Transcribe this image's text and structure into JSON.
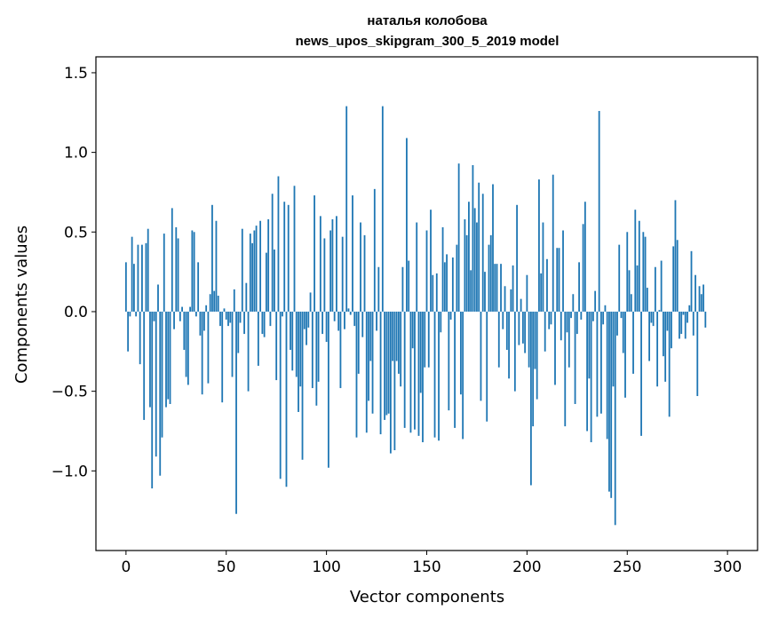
{
  "chart_data": {
    "type": "bar",
    "title_line1": "наталья колобова",
    "title_line2": "news_upos_skipgram_300_5_2019 model",
    "xlabel": "Vector components",
    "ylabel": "Components values",
    "xlim": [
      -15,
      315
    ],
    "ylim": [
      -1.5,
      1.6
    ],
    "xticks": [
      0,
      50,
      100,
      150,
      200,
      250,
      300
    ],
    "xtick_labels": [
      "0",
      "50",
      "100",
      "150",
      "200",
      "250",
      "300"
    ],
    "yticks": [
      -1.0,
      -0.5,
      0.0,
      0.5,
      1.0,
      1.5
    ],
    "ytick_labels": [
      "−1.0",
      "−0.5",
      "0.0",
      "0.5",
      "1.0",
      "1.5"
    ],
    "bar_color": "#1f77b4",
    "values": [
      0.31,
      -0.25,
      -0.03,
      0.47,
      0.3,
      -0.03,
      0.42,
      -0.33,
      0.42,
      -0.68,
      0.43,
      0.52,
      -0.6,
      -1.11,
      -0.06,
      -0.91,
      0.17,
      -1.03,
      -0.79,
      0.49,
      -0.6,
      -0.55,
      -0.58,
      0.65,
      -0.11,
      0.53,
      0.46,
      -0.06,
      0.03,
      -0.24,
      -0.41,
      -0.46,
      0.03,
      0.51,
      0.5,
      -0.03,
      0.31,
      -0.15,
      -0.52,
      -0.12,
      0.04,
      -0.45,
      0.11,
      0.67,
      0.13,
      0.57,
      0.1,
      -0.09,
      -0.57,
      0.02,
      -0.05,
      -0.09,
      -0.07,
      -0.41,
      0.14,
      -1.27,
      -0.26,
      -0.07,
      0.52,
      -0.14,
      0.18,
      -0.5,
      0.49,
      0.43,
      0.51,
      0.54,
      -0.34,
      0.57,
      -0.14,
      -0.16,
      0.37,
      0.58,
      -0.09,
      0.74,
      0.39,
      -0.43,
      0.85,
      -1.05,
      -0.03,
      0.69,
      -1.1,
      0.67,
      -0.24,
      -0.37,
      0.79,
      -0.41,
      -0.63,
      -0.47,
      -0.93,
      -0.11,
      -0.21,
      -0.1,
      0.12,
      -0.48,
      0.73,
      -0.59,
      -0.44,
      0.6,
      -0.14,
      0.46,
      -0.19,
      -0.98,
      0.51,
      0.58,
      -0.06,
      0.6,
      -0.12,
      -0.48,
      0.47,
      -0.11,
      1.29,
      0.02,
      -0.02,
      0.73,
      -0.09,
      -0.79,
      -0.39,
      0.56,
      -0.16,
      0.48,
      -0.76,
      -0.56,
      -0.31,
      -0.64,
      0.77,
      -0.12,
      0.28,
      -0.77,
      1.29,
      -0.68,
      -0.65,
      -0.64,
      -0.89,
      -0.31,
      -0.87,
      -0.31,
      -0.39,
      -0.47,
      0.28,
      -0.73,
      1.09,
      0.32,
      -0.76,
      -0.23,
      -0.74,
      0.56,
      -0.78,
      -0.51,
      -0.82,
      -0.35,
      0.51,
      -0.35,
      0.64,
      0.23,
      -0.79,
      0.24,
      -0.81,
      -0.13,
      0.53,
      0.31,
      0.36,
      -0.62,
      -0.05,
      0.34,
      -0.73,
      0.42,
      0.93,
      -0.52,
      -0.8,
      0.58,
      0.48,
      0.69,
      0.26,
      0.92,
      0.65,
      0.56,
      0.81,
      -0.56,
      0.74,
      0.25,
      -0.69,
      0.42,
      0.48,
      0.8,
      0.3,
      0.3,
      -0.35,
      0.3,
      -0.11,
      0.16,
      -0.24,
      -0.42,
      0.14,
      0.29,
      -0.5,
      0.67,
      -0.21,
      0.08,
      -0.2,
      -0.26,
      0.23,
      -0.35,
      -1.09,
      -0.72,
      -0.36,
      -0.55,
      0.83,
      0.24,
      0.56,
      -0.25,
      0.33,
      -0.11,
      -0.08,
      0.86,
      -0.46,
      0.4,
      0.4,
      -0.18,
      0.51,
      -0.72,
      -0.13,
      -0.35,
      -0.04,
      0.11,
      -0.58,
      -0.14,
      0.31,
      -0.05,
      0.55,
      0.69,
      -0.75,
      -0.42,
      -0.82,
      -0.06,
      0.13,
      -0.66,
      1.26,
      -0.64,
      -0.08,
      0.04,
      -0.8,
      -1.13,
      -1.17,
      -0.47,
      -1.34,
      -0.15,
      0.42,
      -0.04,
      -0.26,
      -0.54,
      0.5,
      0.26,
      0.11,
      -0.39,
      0.64,
      0.29,
      0.57,
      -0.78,
      0.5,
      0.47,
      0.15,
      -0.31,
      -0.07,
      -0.09,
      0.28,
      -0.47,
      0.01,
      0.32,
      -0.28,
      -0.44,
      -0.12,
      -0.66,
      -0.23,
      0.41,
      0.7,
      0.45,
      -0.17,
      -0.14,
      -0.02,
      -0.17,
      -0.07,
      0.04,
      0.38,
      -0.15,
      0.23,
      -0.53,
      0.16,
      0.11,
      0.17,
      -0.1
    ]
  }
}
